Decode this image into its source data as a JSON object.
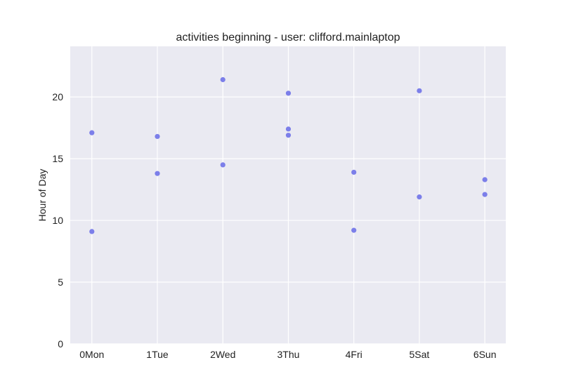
{
  "chart_data": {
    "type": "scatter",
    "title": "activities beginning - user: clifford.mainlaptop",
    "xlabel": "",
    "ylabel": "Hour of Day",
    "categories": [
      "0Mon",
      "1Tue",
      "2Wed",
      "3Thu",
      "4Fri",
      "5Sat",
      "6Sun"
    ],
    "xlim": [
      -0.33,
      6.32
    ],
    "ylim": [
      0,
      24.1
    ],
    "yticks": [
      0,
      5,
      10,
      15,
      20
    ],
    "grid": true,
    "colors": {
      "background": "#eaeaf2",
      "grid": "#ffffff",
      "point": "#6f72e8"
    },
    "points": [
      {
        "x": 0,
        "y": 17.1
      },
      {
        "x": 0,
        "y": 9.1
      },
      {
        "x": 1,
        "y": 16.8
      },
      {
        "x": 1,
        "y": 13.8
      },
      {
        "x": 2,
        "y": 21.4
      },
      {
        "x": 2,
        "y": 14.5
      },
      {
        "x": 3,
        "y": 20.3
      },
      {
        "x": 3,
        "y": 17.4
      },
      {
        "x": 3,
        "y": 16.9
      },
      {
        "x": 4,
        "y": 13.9
      },
      {
        "x": 4,
        "y": 9.2
      },
      {
        "x": 5,
        "y": 20.5
      },
      {
        "x": 5,
        "y": 11.9
      },
      {
        "x": 6,
        "y": 13.3
      },
      {
        "x": 6,
        "y": 12.1
      }
    ]
  }
}
